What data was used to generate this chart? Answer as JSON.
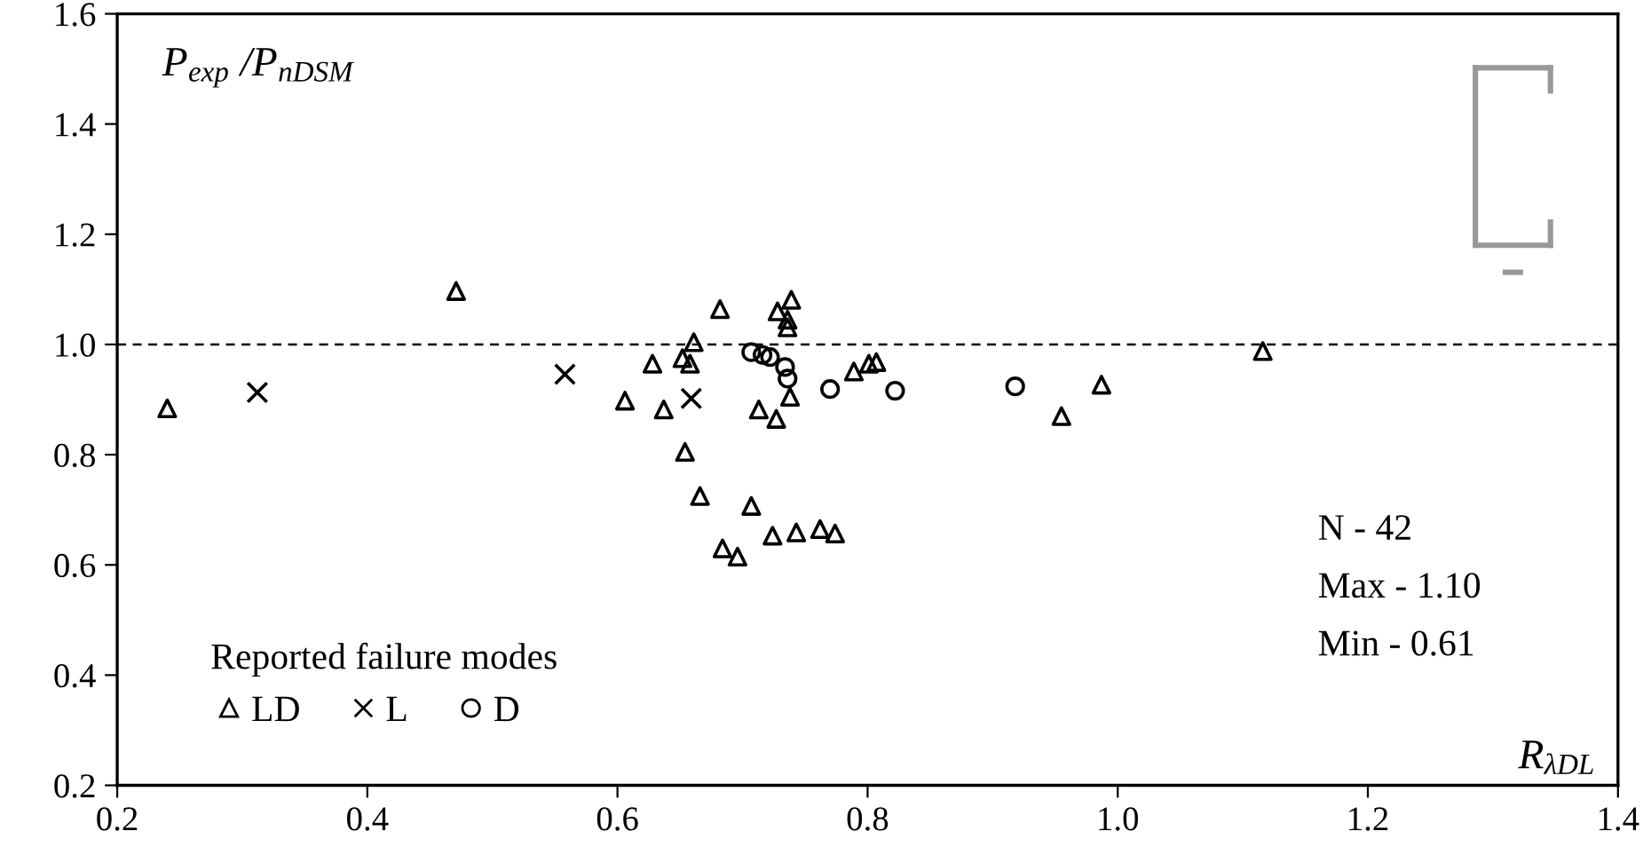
{
  "chart_data": {
    "type": "scatter",
    "xlabel": "R$_{λDL}$",
    "ylabel": "P$_{exp}$ /P$_{nDSM}$",
    "legend_title": "Reported failure modes",
    "series": [
      {
        "name": "LD",
        "color": "#000000",
        "marker": "triangle",
        "x": [
          0.24,
          0.471,
          0.606,
          0.628,
          0.682,
          0.728,
          0.739,
          0.736,
          0.736,
          0.652,
          0.661,
          0.658,
          0.637,
          0.738,
          0.789,
          0.801,
          0.807,
          0.713,
          0.727,
          0.654,
          0.666,
          0.707,
          0.724,
          0.743,
          0.762,
          0.774,
          0.684,
          0.696,
          0.955,
          0.987,
          1.116
        ],
        "values": [
          0.884,
          1.097,
          0.898,
          0.965,
          1.064,
          1.06,
          1.081,
          1.045,
          1.031,
          0.975,
          1.004,
          0.965,
          0.882,
          0.905,
          0.951,
          0.965,
          0.968,
          0.882,
          0.865,
          0.805,
          0.725,
          0.707,
          0.653,
          0.659,
          0.665,
          0.657,
          0.63,
          0.615,
          0.87,
          0.927,
          0.988
        ]
      },
      {
        "name": "L",
        "color": "#000000",
        "marker": "cross",
        "x": [
          0.312,
          0.558,
          0.659
        ],
        "values": [
          0.913,
          0.946,
          0.902
        ]
      },
      {
        "name": "D",
        "color": "#000000",
        "marker": "circle",
        "x": [
          0.707,
          0.716,
          0.722,
          0.734,
          0.736,
          0.77,
          0.822,
          0.918
        ],
        "values": [
          0.986,
          0.981,
          0.977,
          0.959,
          0.938,
          0.919,
          0.916,
          0.924
        ]
      }
    ],
    "xlim": [
      0.2,
      1.4
    ],
    "ylim": [
      0.2,
      1.6
    ],
    "xticks": [
      0.2,
      0.4,
      0.6,
      0.8,
      {
        "value": 1,
        "label": "1.0"
      },
      1.2,
      1.4
    ],
    "yticks": [
      0.2,
      0.4,
      0.6,
      0.8,
      {
        "value": 1,
        "label": "1.0"
      },
      1.2,
      1.4,
      1.6
    ],
    "ref_lines": [
      {
        "axis": "y",
        "value": 1.0,
        "color": "#000000",
        "line_style": "dashed"
      }
    ],
    "annotations": [
      "N - 42",
      "Max - 1.10",
      "Min - 0.61"
    ],
    "legend": "bottom left",
    "grid": false
  }
}
